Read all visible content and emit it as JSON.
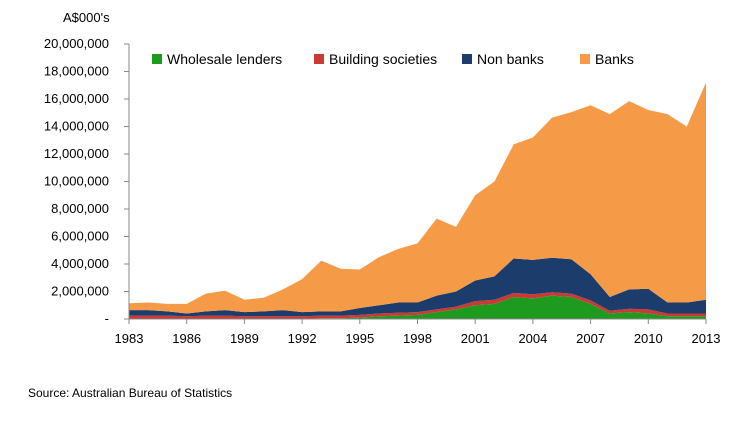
{
  "chart_data": {
    "type": "area",
    "stacked": true,
    "ylabel": "A$000's",
    "ylim": [
      0,
      20000000
    ],
    "yticks": [
      0,
      2000000,
      4000000,
      6000000,
      8000000,
      10000000,
      12000000,
      14000000,
      16000000,
      18000000,
      20000000
    ],
    "ytick_labels": [
      "-",
      "2,000,000",
      "4,000,000",
      "6,000,000",
      "8,000,000",
      "10,000,000",
      "12,000,000",
      "14,000,000",
      "16,000,000",
      "18,000,000",
      "20,000,000"
    ],
    "xticks": [
      1983,
      1986,
      1989,
      1992,
      1995,
      1998,
      2001,
      2004,
      2007,
      2010,
      2013
    ],
    "x": [
      1983,
      1984,
      1985,
      1986,
      1987,
      1988,
      1989,
      1990,
      1991,
      1992,
      1993,
      1994,
      1995,
      1996,
      1997,
      1998,
      1999,
      2000,
      2001,
      2002,
      2003,
      2004,
      2005,
      2006,
      2007,
      2008,
      2009,
      2010,
      2011,
      2012,
      2013
    ],
    "legend_position": "top",
    "grid": false,
    "series": [
      {
        "name": "Wholesale lenders",
        "color": "#1e9a1e",
        "values": [
          0,
          0,
          0,
          0,
          0,
          0,
          0,
          0,
          0,
          0,
          50000,
          50000,
          100000,
          200000,
          250000,
          300000,
          500000,
          700000,
          1000000,
          1100000,
          1600000,
          1500000,
          1700000,
          1600000,
          1100000,
          400000,
          500000,
          400000,
          200000,
          200000,
          200000
        ]
      },
      {
        "name": "Building societies",
        "color": "#c93a34",
        "values": [
          250000,
          250000,
          250000,
          200000,
          250000,
          250000,
          200000,
          200000,
          200000,
          200000,
          200000,
          200000,
          200000,
          200000,
          200000,
          200000,
          200000,
          200000,
          300000,
          300000,
          300000,
          300000,
          250000,
          250000,
          250000,
          200000,
          250000,
          300000,
          200000,
          200000,
          200000
        ]
      },
      {
        "name": "Non banks",
        "color": "#1c3c6b",
        "values": [
          400000,
          400000,
          300000,
          200000,
          300000,
          400000,
          300000,
          350000,
          450000,
          300000,
          300000,
          300000,
          500000,
          600000,
          750000,
          700000,
          1000000,
          1100000,
          1500000,
          1700000,
          2500000,
          2500000,
          2500000,
          2500000,
          1900000,
          1000000,
          1400000,
          1500000,
          800000,
          800000,
          1000000
        ]
      },
      {
        "name": "Banks",
        "color": "#f59b47",
        "values": [
          500000,
          550000,
          550000,
          700000,
          1300000,
          1400000,
          900000,
          1000000,
          1500000,
          2400000,
          3700000,
          3100000,
          2800000,
          3500000,
          3900000,
          4300000,
          5600000,
          4700000,
          6200000,
          6900000,
          8300000,
          8900000,
          10200000,
          10700000,
          12300000,
          13300000,
          13700000,
          13000000,
          13700000,
          12800000,
          15800000
        ]
      }
    ]
  },
  "source": "Source: Australian Bureau of Statistics"
}
